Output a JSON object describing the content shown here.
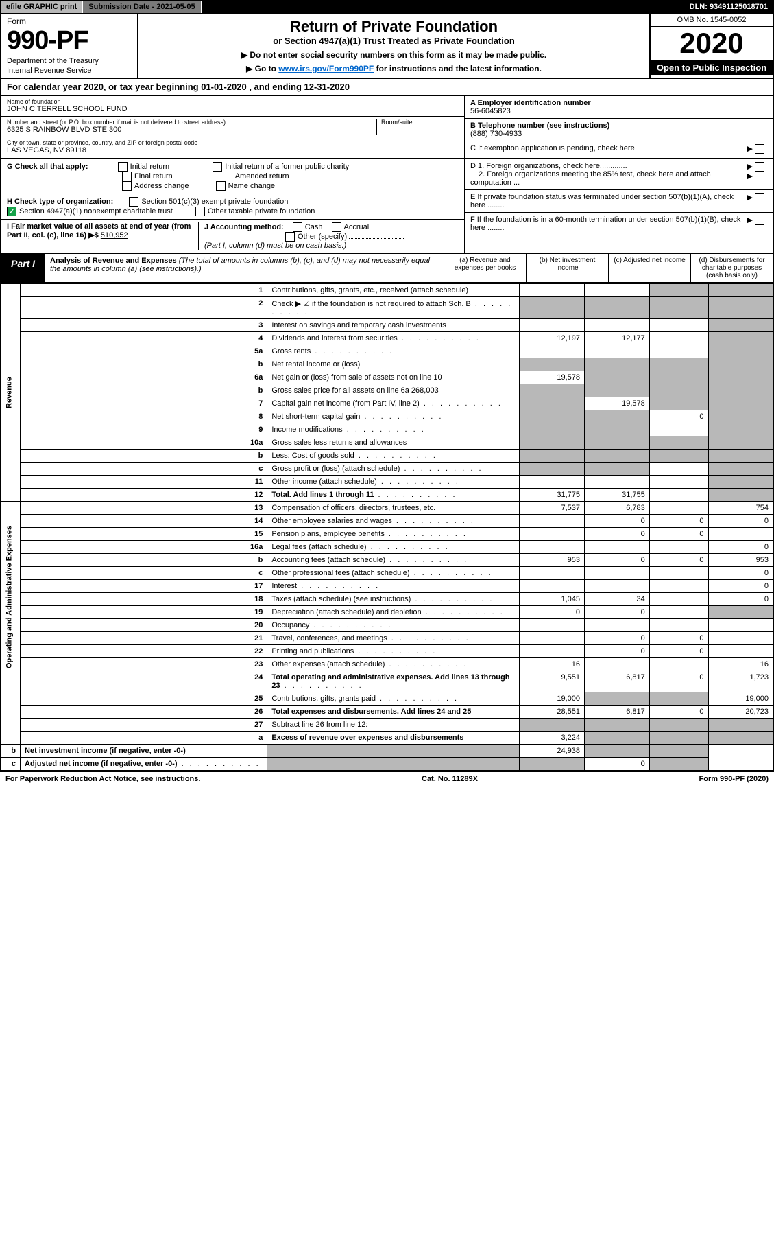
{
  "top": {
    "efile": "efile GRAPHIC print",
    "subdate_label": "Submission Date - 2021-05-05",
    "dln": "DLN: 93491125018701"
  },
  "header": {
    "form": "Form",
    "number": "990-PF",
    "dept1": "Department of the Treasury",
    "dept2": "Internal Revenue Service",
    "title": "Return of Private Foundation",
    "subtitle": "or Section 4947(a)(1) Trust Treated as Private Foundation",
    "notice1": "▶ Do not enter social security numbers on this form as it may be made public.",
    "notice2_pre": "▶ Go to ",
    "notice2_link": "www.irs.gov/Form990PF",
    "notice2_post": " for instructions and the latest information.",
    "omb": "OMB No. 1545-0052",
    "year": "2020",
    "inspect": "Open to Public Inspection"
  },
  "calyear": "For calendar year 2020, or tax year beginning 01-01-2020                            , and ending 12-31-2020",
  "info": {
    "name_lbl": "Name of foundation",
    "name": "JOHN C TERRELL SCHOOL FUND",
    "addr_lbl": "Number and street (or P.O. box number if mail is not delivered to street address)",
    "room_lbl": "Room/suite",
    "addr": "6325 S RAINBOW BLVD STE 300",
    "city_lbl": "City or town, state or province, country, and ZIP or foreign postal code",
    "city": "LAS VEGAS, NV  89118",
    "a_lbl": "A Employer identification number",
    "a_val": "56-6045823",
    "b_lbl": "B Telephone number (see instructions)",
    "b_val": "(888) 730-4933",
    "c_lbl": "C If exemption application is pending, check here",
    "d1": "D 1. Foreign organizations, check here.............",
    "d2": "2. Foreign organizations meeting the 85% test, check here and attach computation ...",
    "e": "E  If private foundation status was terminated under section 507(b)(1)(A), check here ........",
    "f": "F  If the foundation is in a 60-month termination under section 507(b)(1)(B), check here ........"
  },
  "checks": {
    "g_lbl": "G Check all that apply:",
    "g1": "Initial return",
    "g2": "Final return",
    "g3": "Address change",
    "g4": "Initial return of a former public charity",
    "g5": "Amended return",
    "g6": "Name change",
    "h_lbl": "H Check type of organization:",
    "h1": "Section 501(c)(3) exempt private foundation",
    "h2": "Section 4947(a)(1) nonexempt charitable trust",
    "h3": "Other taxable private foundation",
    "i_lbl": "I Fair market value of all assets at end of year (from Part II, col. (c), line 16) ▶$",
    "i_val": "510,952",
    "j_lbl": "J Accounting method:",
    "j1": "Cash",
    "j2": "Accrual",
    "j3": "Other (specify)",
    "j_note": "(Part I, column (d) must be on cash basis.)"
  },
  "part1": {
    "label": "Part I",
    "title": "Analysis of Revenue and Expenses",
    "note": "(The total of amounts in columns (b), (c), and (d) may not necessarily equal the amounts in column (a) (see instructions).)",
    "cols": {
      "a": "(a)   Revenue and expenses per books",
      "b": "(b)   Net investment income",
      "c": "(c)   Adjusted net income",
      "d": "(d)  Disbursements for charitable purposes (cash basis only)"
    }
  },
  "sections": {
    "rev": "Revenue",
    "oae": "Operating and Administrative Expenses"
  },
  "rows": [
    {
      "n": "1",
      "d": "Contributions, gifts, grants, etc., received (attach schedule)",
      "a": "",
      "b": "",
      "c": "sh",
      "dcol": "sh"
    },
    {
      "n": "2",
      "d": "Check ▶ ☑ if the foundation is not required to attach Sch. B",
      "dots": 1,
      "a": "sh",
      "b": "sh",
      "c": "sh",
      "dcol": "sh"
    },
    {
      "n": "3",
      "d": "Interest on savings and temporary cash investments",
      "a": "",
      "b": "",
      "c": "",
      "dcol": "sh"
    },
    {
      "n": "4",
      "d": "Dividends and interest from securities",
      "dots": 1,
      "a": "12,197",
      "b": "12,177",
      "c": "",
      "dcol": "sh"
    },
    {
      "n": "5a",
      "d": "Gross rents",
      "dots": 1,
      "a": "",
      "b": "",
      "c": "",
      "dcol": "sh"
    },
    {
      "n": "b",
      "d": "Net rental income or (loss)",
      "a": "sh",
      "b": "sh",
      "c": "sh",
      "dcol": "sh"
    },
    {
      "n": "6a",
      "d": "Net gain or (loss) from sale of assets not on line 10",
      "a": "19,578",
      "b": "sh",
      "c": "sh",
      "dcol": "sh"
    },
    {
      "n": "b",
      "d": "Gross sales price for all assets on line 6a             268,003",
      "a": "sh",
      "b": "sh",
      "c": "sh",
      "dcol": "sh"
    },
    {
      "n": "7",
      "d": "Capital gain net income (from Part IV, line 2)",
      "dots": 1,
      "a": "sh",
      "b": "19,578",
      "c": "sh",
      "dcol": "sh"
    },
    {
      "n": "8",
      "d": "Net short-term capital gain",
      "dots": 1,
      "a": "sh",
      "b": "sh",
      "c": "0",
      "dcol": "sh"
    },
    {
      "n": "9",
      "d": "Income modifications",
      "dots": 1,
      "a": "sh",
      "b": "sh",
      "c": "",
      "dcol": "sh"
    },
    {
      "n": "10a",
      "d": "Gross sales less returns and allowances",
      "a": "sh",
      "b": "sh",
      "c": "sh",
      "dcol": "sh"
    },
    {
      "n": "b",
      "d": "Less: Cost of goods sold",
      "dots": 1,
      "a": "sh",
      "b": "sh",
      "c": "sh",
      "dcol": "sh"
    },
    {
      "n": "c",
      "d": "Gross profit or (loss) (attach schedule)",
      "dots": 1,
      "a": "sh",
      "b": "sh",
      "c": "",
      "dcol": "sh"
    },
    {
      "n": "11",
      "d": "Other income (attach schedule)",
      "dots": 1,
      "a": "",
      "b": "",
      "c": "",
      "dcol": "sh"
    },
    {
      "n": "12",
      "d": "Total. Add lines 1 through 11",
      "dots": 1,
      "bold": 1,
      "a": "31,775",
      "b": "31,755",
      "c": "",
      "dcol": "sh"
    },
    {
      "n": "13",
      "d": "Compensation of officers, directors, trustees, etc.",
      "a": "7,537",
      "b": "6,783",
      "c": "",
      "dcol": "754",
      "sec": "oae"
    },
    {
      "n": "14",
      "d": "Other employee salaries and wages",
      "dots": 1,
      "a": "",
      "b": "0",
      "c": "0",
      "dcol": "0"
    },
    {
      "n": "15",
      "d": "Pension plans, employee benefits",
      "dots": 1,
      "a": "",
      "b": "0",
      "c": "0",
      "dcol": ""
    },
    {
      "n": "16a",
      "d": "Legal fees (attach schedule)",
      "dots": 1,
      "a": "",
      "b": "",
      "c": "",
      "dcol": "0"
    },
    {
      "n": "b",
      "d": "Accounting fees (attach schedule)",
      "dots": 1,
      "a": "953",
      "b": "0",
      "c": "0",
      "dcol": "953"
    },
    {
      "n": "c",
      "d": "Other professional fees (attach schedule)",
      "dots": 1,
      "a": "",
      "b": "",
      "c": "",
      "dcol": "0"
    },
    {
      "n": "17",
      "d": "Interest",
      "dots": 1,
      "a": "",
      "b": "",
      "c": "",
      "dcol": "0"
    },
    {
      "n": "18",
      "d": "Taxes (attach schedule) (see instructions)",
      "dots": 1,
      "a": "1,045",
      "b": "34",
      "c": "",
      "dcol": "0"
    },
    {
      "n": "19",
      "d": "Depreciation (attach schedule) and depletion",
      "dots": 1,
      "a": "0",
      "b": "0",
      "c": "",
      "dcol": "sh"
    },
    {
      "n": "20",
      "d": "Occupancy",
      "dots": 1,
      "a": "",
      "b": "",
      "c": "",
      "dcol": ""
    },
    {
      "n": "21",
      "d": "Travel, conferences, and meetings",
      "dots": 1,
      "a": "",
      "b": "0",
      "c": "0",
      "dcol": ""
    },
    {
      "n": "22",
      "d": "Printing and publications",
      "dots": 1,
      "a": "",
      "b": "0",
      "c": "0",
      "dcol": ""
    },
    {
      "n": "23",
      "d": "Other expenses (attach schedule)",
      "dots": 1,
      "a": "16",
      "b": "",
      "c": "",
      "dcol": "16"
    },
    {
      "n": "24",
      "d": "Total operating and administrative expenses. Add lines 13 through 23",
      "dots": 1,
      "bold": 1,
      "a": "9,551",
      "b": "6,817",
      "c": "0",
      "dcol": "1,723"
    },
    {
      "n": "25",
      "d": "Contributions, gifts, grants paid",
      "dots": 1,
      "a": "19,000",
      "b": "sh",
      "c": "sh",
      "dcol": "19,000"
    },
    {
      "n": "26",
      "d": "Total expenses and disbursements. Add lines 24 and 25",
      "bold": 1,
      "a": "28,551",
      "b": "6,817",
      "c": "0",
      "dcol": "20,723"
    },
    {
      "n": "27",
      "d": "Subtract line 26 from line 12:",
      "a": "sh",
      "b": "sh",
      "c": "sh",
      "dcol": "sh",
      "sec": "end"
    },
    {
      "n": "a",
      "d": "Excess of revenue over expenses and disbursements",
      "bold": 1,
      "a": "3,224",
      "b": "sh",
      "c": "sh",
      "dcol": "sh"
    },
    {
      "n": "b",
      "d": "Net investment income (if negative, enter -0-)",
      "bold": 1,
      "a": "sh",
      "b": "24,938",
      "c": "sh",
      "dcol": "sh"
    },
    {
      "n": "c",
      "d": "Adjusted net income (if negative, enter -0-)",
      "dots": 1,
      "bold": 1,
      "a": "sh",
      "b": "sh",
      "c": "0",
      "dcol": "sh"
    }
  ],
  "footer": {
    "left": "For Paperwork Reduction Act Notice, see instructions.",
    "mid": "Cat. No. 11289X",
    "right": "Form 990-PF (2020)"
  }
}
